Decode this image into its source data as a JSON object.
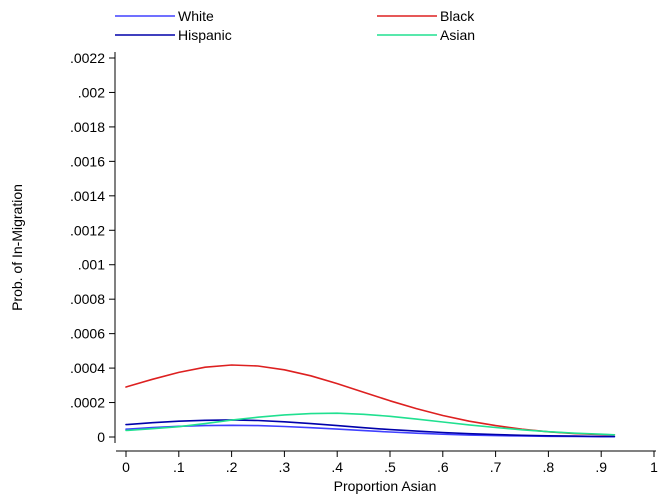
{
  "chart_data": {
    "type": "line",
    "title": "",
    "xlabel": "Proportion Asian",
    "ylabel": "Prob. of In-Migration",
    "xlim": [
      0,
      1
    ],
    "ylim": [
      0,
      0.0022
    ],
    "x_ticks": [
      {
        "value": 0,
        "label": "0"
      },
      {
        "value": 0.1,
        "label": ".1"
      },
      {
        "value": 0.2,
        "label": ".2"
      },
      {
        "value": 0.3,
        "label": ".3"
      },
      {
        "value": 0.4,
        "label": ".4"
      },
      {
        "value": 0.5,
        "label": ".5"
      },
      {
        "value": 0.6,
        "label": ".6"
      },
      {
        "value": 0.7,
        "label": ".7"
      },
      {
        "value": 0.8,
        "label": ".8"
      },
      {
        "value": 0.9,
        "label": ".9"
      },
      {
        "value": 1,
        "label": "1"
      }
    ],
    "y_ticks": [
      {
        "value": 0,
        "label": "0"
      },
      {
        "value": 0.0002,
        "label": ".0002"
      },
      {
        "value": 0.0004,
        "label": ".0004"
      },
      {
        "value": 0.0006,
        "label": ".0006"
      },
      {
        "value": 0.0008,
        "label": ".0008"
      },
      {
        "value": 0.001,
        "label": ".001"
      },
      {
        "value": 0.0012,
        "label": ".0012"
      },
      {
        "value": 0.0014,
        "label": ".0014"
      },
      {
        "value": 0.0016,
        "label": ".0016"
      },
      {
        "value": 0.0018,
        "label": ".0018"
      },
      {
        "value": 0.002,
        "label": ".002"
      },
      {
        "value": 0.0022,
        "label": ".0022"
      }
    ],
    "grid": false,
    "legend_position": "top",
    "series": [
      {
        "name": "White",
        "color": "#4040ff",
        "x": [
          0,
          0.05,
          0.1,
          0.15,
          0.2,
          0.25,
          0.3,
          0.35,
          0.4,
          0.45,
          0.5,
          0.55,
          0.6,
          0.65,
          0.7,
          0.75,
          0.8,
          0.85,
          0.9,
          0.925
        ],
        "y": [
          4.5e-05,
          5.5e-05,
          6.2e-05,
          6.6e-05,
          6.8e-05,
          6.6e-05,
          6.1e-05,
          5.4e-05,
          4.6e-05,
          3.7e-05,
          2.9e-05,
          2.2e-05,
          1.6e-05,
          1.1e-05,
          8e-06,
          6e-06,
          4e-06,
          3e-06,
          2e-06,
          2e-06
        ]
      },
      {
        "name": "Black",
        "color": "#dd2020",
        "x": [
          0,
          0.05,
          0.1,
          0.15,
          0.2,
          0.25,
          0.3,
          0.35,
          0.4,
          0.45,
          0.5,
          0.55,
          0.6,
          0.65,
          0.7,
          0.75,
          0.8,
          0.85,
          0.9,
          0.925
        ],
        "y": [
          0.00029,
          0.000335,
          0.000375,
          0.000405,
          0.000418,
          0.000412,
          0.00039,
          0.000355,
          0.00031,
          0.00026,
          0.00021,
          0.000165,
          0.000125,
          9.2e-05,
          6.6e-05,
          4.5e-05,
          3e-05,
          2e-05,
          1.4e-05,
          1.2e-05
        ]
      },
      {
        "name": "Hispanic",
        "color": "#0000aa",
        "x": [
          0,
          0.05,
          0.1,
          0.15,
          0.2,
          0.25,
          0.3,
          0.35,
          0.4,
          0.45,
          0.5,
          0.55,
          0.6,
          0.65,
          0.7,
          0.75,
          0.8,
          0.85,
          0.9,
          0.925
        ],
        "y": [
          7.2e-05,
          8.3e-05,
          9.2e-05,
          9.7e-05,
          9.9e-05,
          9.6e-05,
          8.8e-05,
          7.8e-05,
          6.6e-05,
          5.4e-05,
          4.3e-05,
          3.4e-05,
          2.6e-05,
          1.9e-05,
          1.4e-05,
          1e-05,
          7e-06,
          5e-06,
          3e-06,
          3e-06
        ]
      },
      {
        "name": "Asian",
        "color": "#20e090",
        "x": [
          0,
          0.05,
          0.1,
          0.15,
          0.2,
          0.25,
          0.3,
          0.35,
          0.4,
          0.45,
          0.5,
          0.55,
          0.6,
          0.65,
          0.7,
          0.75,
          0.8,
          0.85,
          0.9,
          0.925
        ],
        "y": [
          3.8e-05,
          4.8e-05,
          6e-05,
          7.8e-05,
          9.8e-05,
          0.000115,
          0.000128,
          0.000136,
          0.000138,
          0.000132,
          0.00012,
          0.000104,
          8.7e-05,
          7e-05,
          5.5e-05,
          4.2e-05,
          3.1e-05,
          2.2e-05,
          1.6e-05,
          1.3e-05
        ]
      }
    ]
  }
}
